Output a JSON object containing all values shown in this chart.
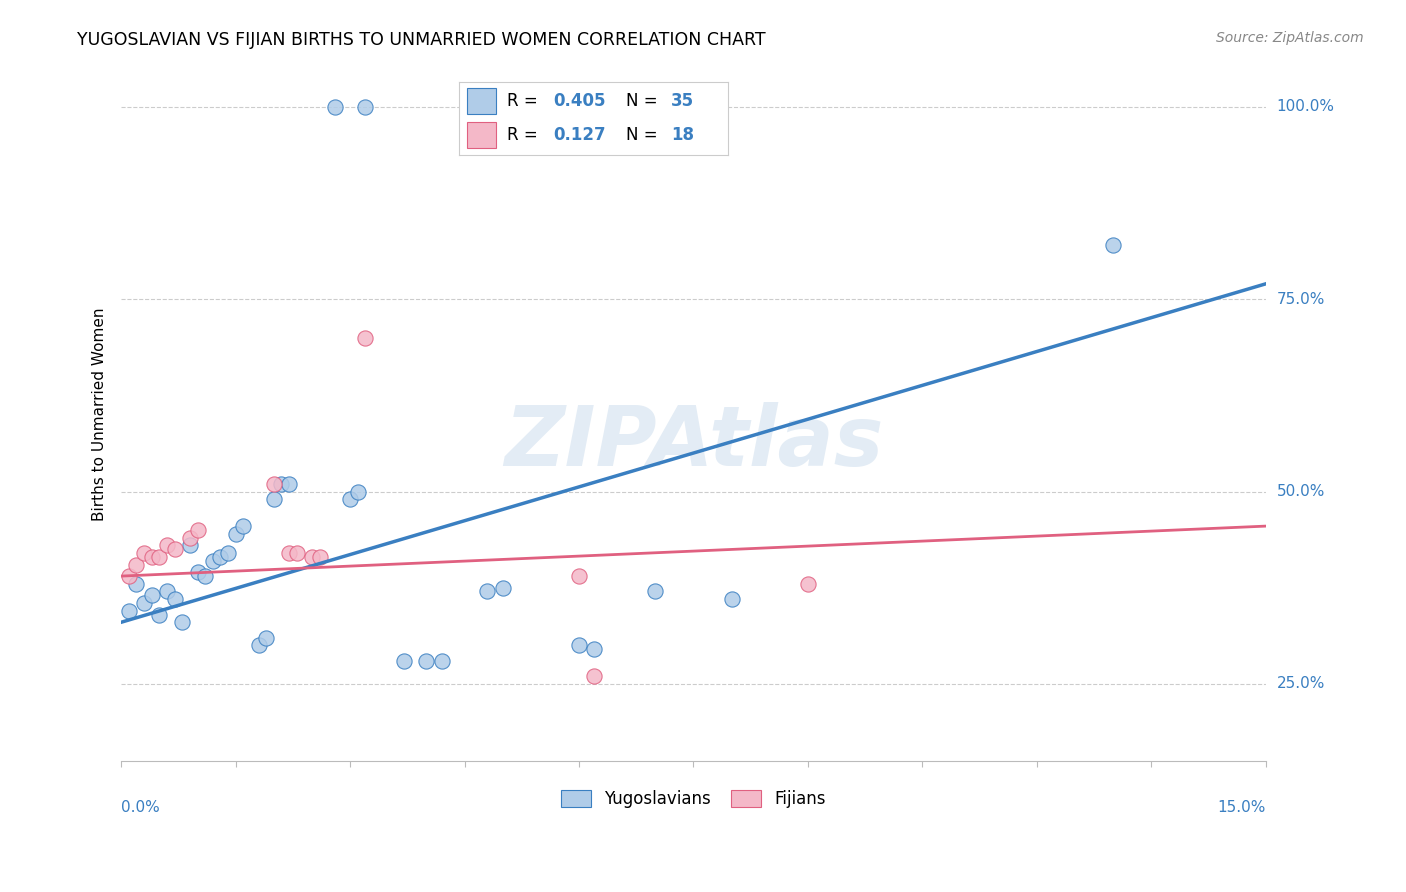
{
  "title": "YUGOSLAVIAN VS FIJIAN BIRTHS TO UNMARRIED WOMEN CORRELATION CHART",
  "source": "Source: ZipAtlas.com",
  "ylabel": "Births to Unmarried Women",
  "yug_color": "#b0cce8",
  "fij_color": "#f4b8c8",
  "blue_line_color": "#3a7fc1",
  "pink_line_color": "#e06080",
  "yug_R": 0.405,
  "fij_R": 0.127,
  "yug_N": 35,
  "fij_N": 18,
  "yug_points": [
    [
      0.001,
      0.345
    ],
    [
      0.002,
      0.38
    ],
    [
      0.003,
      0.355
    ],
    [
      0.004,
      0.365
    ],
    [
      0.005,
      0.34
    ],
    [
      0.006,
      0.37
    ],
    [
      0.007,
      0.36
    ],
    [
      0.008,
      0.33
    ],
    [
      0.009,
      0.43
    ],
    [
      0.01,
      0.395
    ],
    [
      0.011,
      0.39
    ],
    [
      0.012,
      0.41
    ],
    [
      0.013,
      0.415
    ],
    [
      0.014,
      0.42
    ],
    [
      0.015,
      0.445
    ],
    [
      0.016,
      0.455
    ],
    [
      0.018,
      0.3
    ],
    [
      0.019,
      0.31
    ],
    [
      0.02,
      0.49
    ],
    [
      0.021,
      0.51
    ],
    [
      0.022,
      0.51
    ],
    [
      0.03,
      0.49
    ],
    [
      0.031,
      0.5
    ],
    [
      0.037,
      0.28
    ],
    [
      0.04,
      0.28
    ],
    [
      0.042,
      0.28
    ],
    [
      0.048,
      0.37
    ],
    [
      0.05,
      0.375
    ],
    [
      0.06,
      0.3
    ],
    [
      0.062,
      0.295
    ],
    [
      0.07,
      0.37
    ],
    [
      0.08,
      0.36
    ],
    [
      0.028,
      1.0
    ],
    [
      0.032,
      1.0
    ],
    [
      0.13,
      0.82
    ]
  ],
  "fij_points": [
    [
      0.001,
      0.39
    ],
    [
      0.002,
      0.405
    ],
    [
      0.003,
      0.42
    ],
    [
      0.004,
      0.415
    ],
    [
      0.005,
      0.415
    ],
    [
      0.006,
      0.43
    ],
    [
      0.007,
      0.425
    ],
    [
      0.009,
      0.44
    ],
    [
      0.01,
      0.45
    ],
    [
      0.02,
      0.51
    ],
    [
      0.022,
      0.42
    ],
    [
      0.023,
      0.42
    ],
    [
      0.025,
      0.415
    ],
    [
      0.026,
      0.415
    ],
    [
      0.032,
      0.7
    ],
    [
      0.06,
      0.39
    ],
    [
      0.062,
      0.26
    ],
    [
      0.09,
      0.38
    ]
  ],
  "yug_line_x": [
    0.0,
    0.15
  ],
  "yug_line_y": [
    0.33,
    0.77
  ],
  "fij_line_x": [
    0.0,
    0.15
  ],
  "fij_line_y": [
    0.39,
    0.455
  ],
  "xmin": 0.0,
  "xmax": 0.15,
  "ymin": 0.15,
  "ymax": 1.05,
  "yticks": [
    0.25,
    0.5,
    0.75,
    1.0
  ],
  "ytick_labels": [
    "25.0%",
    "50.0%",
    "75.0%",
    "100.0%"
  ],
  "marker_size": 120,
  "marker_lw": 0.8
}
